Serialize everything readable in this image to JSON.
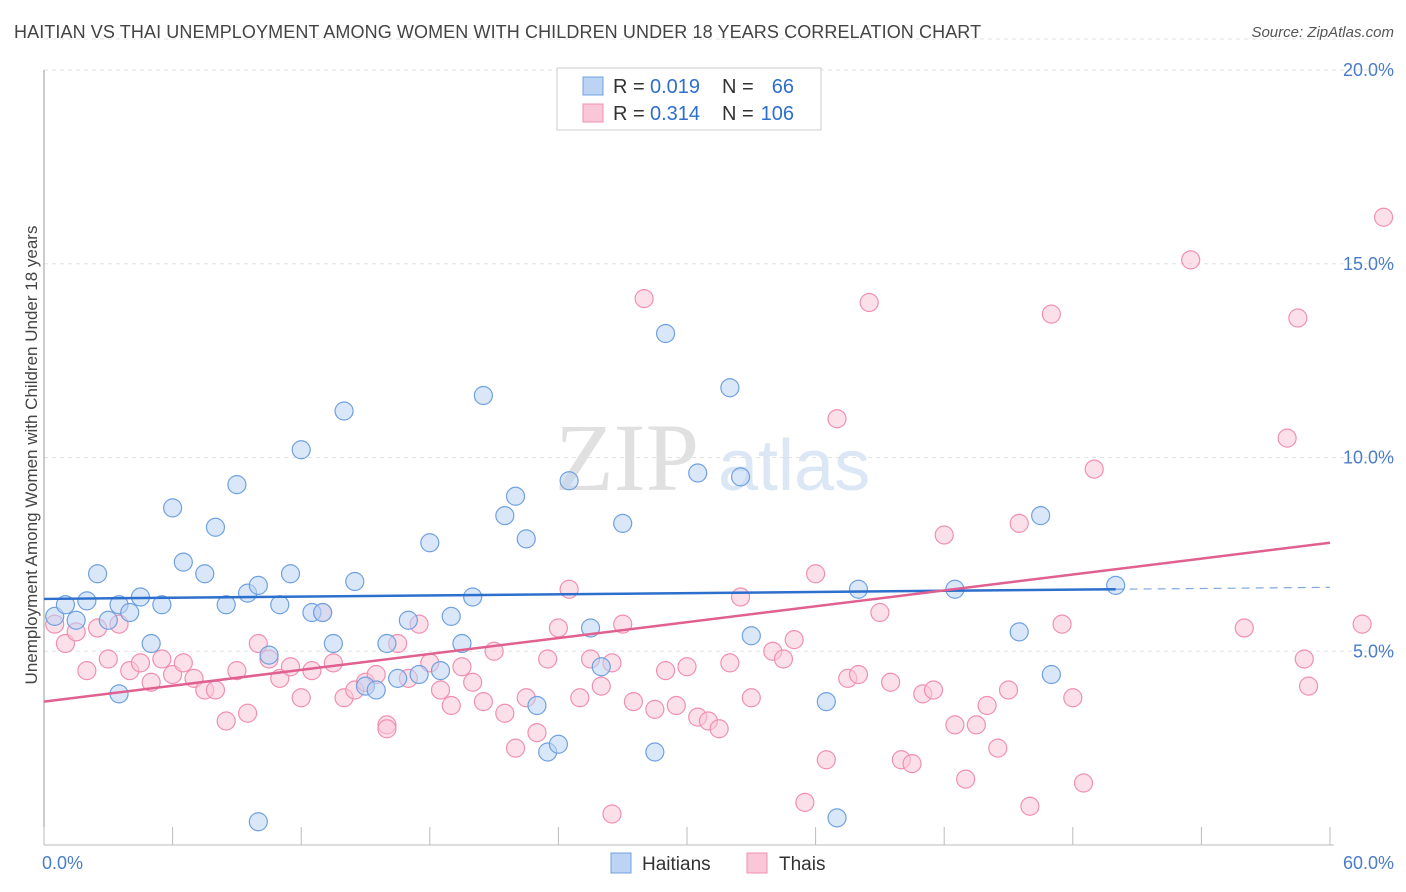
{
  "title": "HAITIAN VS THAI UNEMPLOYMENT AMONG WOMEN WITH CHILDREN UNDER 18 YEARS CORRELATION CHART",
  "source": "Source: ZipAtlas.com",
  "watermark": {
    "zip": "ZIP",
    "atlas": "atlas"
  },
  "legend": {
    "rows": [
      {
        "r_label": "R =",
        "r_value": "0.019",
        "n_label": "N =",
        "n_value": "66"
      },
      {
        "r_label": "R =",
        "r_value": "0.314",
        "n_label": "N =",
        "n_value": "106"
      }
    ]
  },
  "bottom_legend": [
    "Haitians",
    "Thais"
  ],
  "chart_data": {
    "type": "scatter",
    "xlabel": "",
    "ylabel": "Unemployment Among Women with Children Under 18 years",
    "xlim": [
      0,
      60
    ],
    "ylim": [
      0,
      20
    ],
    "x_tick_labels": [
      "0.0%",
      "60.0%"
    ],
    "y_ticks": [
      5,
      10,
      15,
      20
    ],
    "y_tick_labels": [
      "5.0%",
      "10.0%",
      "15.0%",
      "20.0%"
    ],
    "grid": true,
    "legend_position": "top-center",
    "colors": {
      "haitians": "#6fa0e0",
      "haitians_line": "#2d6fcc",
      "thais": "#f08fb0",
      "thais_line": "#e0608f"
    },
    "series": [
      {
        "name": "Haitians",
        "r": 0.019,
        "n": 66,
        "trend": {
          "x": [
            0,
            50
          ],
          "y": [
            6.35,
            6.6
          ],
          "dashed_to": [
            60,
            6.65
          ]
        },
        "points": [
          [
            0.5,
            5.9
          ],
          [
            1.0,
            6.2
          ],
          [
            1.5,
            5.8
          ],
          [
            2.0,
            6.3
          ],
          [
            2.5,
            7.0
          ],
          [
            3.0,
            5.8
          ],
          [
            3.5,
            6.2
          ],
          [
            4.0,
            6.0
          ],
          [
            4.5,
            6.4
          ],
          [
            3.5,
            3.9
          ],
          [
            5.0,
            5.2
          ],
          [
            5.5,
            6.2
          ],
          [
            6.0,
            8.7
          ],
          [
            6.5,
            7.3
          ],
          [
            7.5,
            7.0
          ],
          [
            8.0,
            8.2
          ],
          [
            8.5,
            6.2
          ],
          [
            9.0,
            9.3
          ],
          [
            9.5,
            6.5
          ],
          [
            10.0,
            6.7
          ],
          [
            10.5,
            4.9
          ],
          [
            11.0,
            6.2
          ],
          [
            11.5,
            7.0
          ],
          [
            12.0,
            10.2
          ],
          [
            12.5,
            6.0
          ],
          [
            13.0,
            6.0
          ],
          [
            13.5,
            5.2
          ],
          [
            14.0,
            11.2
          ],
          [
            14.5,
            6.8
          ],
          [
            15.0,
            4.1
          ],
          [
            15.5,
            4.0
          ],
          [
            16.0,
            5.2
          ],
          [
            16.5,
            4.3
          ],
          [
            17.0,
            5.8
          ],
          [
            17.5,
            4.4
          ],
          [
            18.0,
            7.8
          ],
          [
            18.5,
            4.5
          ],
          [
            19.0,
            5.9
          ],
          [
            19.5,
            5.2
          ],
          [
            20.0,
            6.4
          ],
          [
            20.5,
            11.6
          ],
          [
            21.5,
            8.5
          ],
          [
            22.0,
            9.0
          ],
          [
            22.5,
            7.9
          ],
          [
            23.0,
            3.6
          ],
          [
            23.5,
            2.4
          ],
          [
            24.0,
            2.6
          ],
          [
            24.5,
            9.4
          ],
          [
            25.5,
            5.6
          ],
          [
            26.0,
            4.6
          ],
          [
            27.0,
            8.3
          ],
          [
            28.5,
            2.4
          ],
          [
            29.0,
            13.2
          ],
          [
            30.5,
            9.6
          ],
          [
            32.0,
            11.8
          ],
          [
            32.5,
            9.5
          ],
          [
            33.0,
            5.4
          ],
          [
            36.5,
            3.7
          ],
          [
            37.0,
            0.7
          ],
          [
            38.0,
            6.6
          ],
          [
            42.5,
            6.6
          ],
          [
            45.5,
            5.5
          ],
          [
            46.5,
            8.5
          ],
          [
            47.0,
            4.4
          ],
          [
            50.0,
            6.7
          ],
          [
            10.0,
            0.6
          ]
        ]
      },
      {
        "name": "Thais",
        "r": 0.314,
        "n": 106,
        "trend": {
          "x": [
            0,
            60
          ],
          "y": [
            3.7,
            7.8
          ]
        },
        "points": [
          [
            0.5,
            5.7
          ],
          [
            1.0,
            5.2
          ],
          [
            1.5,
            5.5
          ],
          [
            2.0,
            4.5
          ],
          [
            2.5,
            5.6
          ],
          [
            3.0,
            4.8
          ],
          [
            3.5,
            5.7
          ],
          [
            4.0,
            4.5
          ],
          [
            4.5,
            4.7
          ],
          [
            5.0,
            4.2
          ],
          [
            5.5,
            4.8
          ],
          [
            6.0,
            4.4
          ],
          [
            6.5,
            4.7
          ],
          [
            7.0,
            4.3
          ],
          [
            7.5,
            4.0
          ],
          [
            8.0,
            4.0
          ],
          [
            8.5,
            3.2
          ],
          [
            9.0,
            4.5
          ],
          [
            9.5,
            3.4
          ],
          [
            10.0,
            5.2
          ],
          [
            10.5,
            4.8
          ],
          [
            11.0,
            4.3
          ],
          [
            11.5,
            4.6
          ],
          [
            12.0,
            3.8
          ],
          [
            12.5,
            4.5
          ],
          [
            13.0,
            6.0
          ],
          [
            13.5,
            4.7
          ],
          [
            14.0,
            3.8
          ],
          [
            14.5,
            4.0
          ],
          [
            15.0,
            4.2
          ],
          [
            15.5,
            4.4
          ],
          [
            16.0,
            3.1
          ],
          [
            16.5,
            5.2
          ],
          [
            17.0,
            4.3
          ],
          [
            17.5,
            5.7
          ],
          [
            18.0,
            4.7
          ],
          [
            18.5,
            4.0
          ],
          [
            19.0,
            3.6
          ],
          [
            19.5,
            4.6
          ],
          [
            20.0,
            4.2
          ],
          [
            20.5,
            3.7
          ],
          [
            21.0,
            5.0
          ],
          [
            21.5,
            3.4
          ],
          [
            22.0,
            2.5
          ],
          [
            22.5,
            3.8
          ],
          [
            23.0,
            2.9
          ],
          [
            23.5,
            4.8
          ],
          [
            24.0,
            5.6
          ],
          [
            24.5,
            6.6
          ],
          [
            25.0,
            3.8
          ],
          [
            25.5,
            4.8
          ],
          [
            26.0,
            4.1
          ],
          [
            26.5,
            4.7
          ],
          [
            27.0,
            5.7
          ],
          [
            27.5,
            3.7
          ],
          [
            28.0,
            14.1
          ],
          [
            28.5,
            3.5
          ],
          [
            29.0,
            4.5
          ],
          [
            29.5,
            3.6
          ],
          [
            30.0,
            4.6
          ],
          [
            30.5,
            3.3
          ],
          [
            31.0,
            3.2
          ],
          [
            31.5,
            3.0
          ],
          [
            32.0,
            4.7
          ],
          [
            32.5,
            6.4
          ],
          [
            33.0,
            3.8
          ],
          [
            34.0,
            5.0
          ],
          [
            34.5,
            4.8
          ],
          [
            35.0,
            5.3
          ],
          [
            35.5,
            1.1
          ],
          [
            36.0,
            7.0
          ],
          [
            36.5,
            2.2
          ],
          [
            37.0,
            11.0
          ],
          [
            37.5,
            4.3
          ],
          [
            38.0,
            4.4
          ],
          [
            38.5,
            14.0
          ],
          [
            39.0,
            6.0
          ],
          [
            39.5,
            4.2
          ],
          [
            40.0,
            2.2
          ],
          [
            40.5,
            2.1
          ],
          [
            41.0,
            3.9
          ],
          [
            41.5,
            4.0
          ],
          [
            42.0,
            8.0
          ],
          [
            42.5,
            3.1
          ],
          [
            43.0,
            1.7
          ],
          [
            43.5,
            3.1
          ],
          [
            44.0,
            3.6
          ],
          [
            44.5,
            2.5
          ],
          [
            45.0,
            4.0
          ],
          [
            45.5,
            8.3
          ],
          [
            46.0,
            1.0
          ],
          [
            47.0,
            13.7
          ],
          [
            47.5,
            5.7
          ],
          [
            48.0,
            3.8
          ],
          [
            48.5,
            1.6
          ],
          [
            49.0,
            9.7
          ],
          [
            53.5,
            15.1
          ],
          [
            56.0,
            5.6
          ],
          [
            58.0,
            10.5
          ],
          [
            58.5,
            13.6
          ],
          [
            58.8,
            4.8
          ],
          [
            59.0,
            4.1
          ],
          [
            62.5,
            16.2
          ],
          [
            61.5,
            5.7
          ],
          [
            16.0,
            3.0
          ],
          [
            26.5,
            0.8
          ]
        ]
      }
    ]
  }
}
